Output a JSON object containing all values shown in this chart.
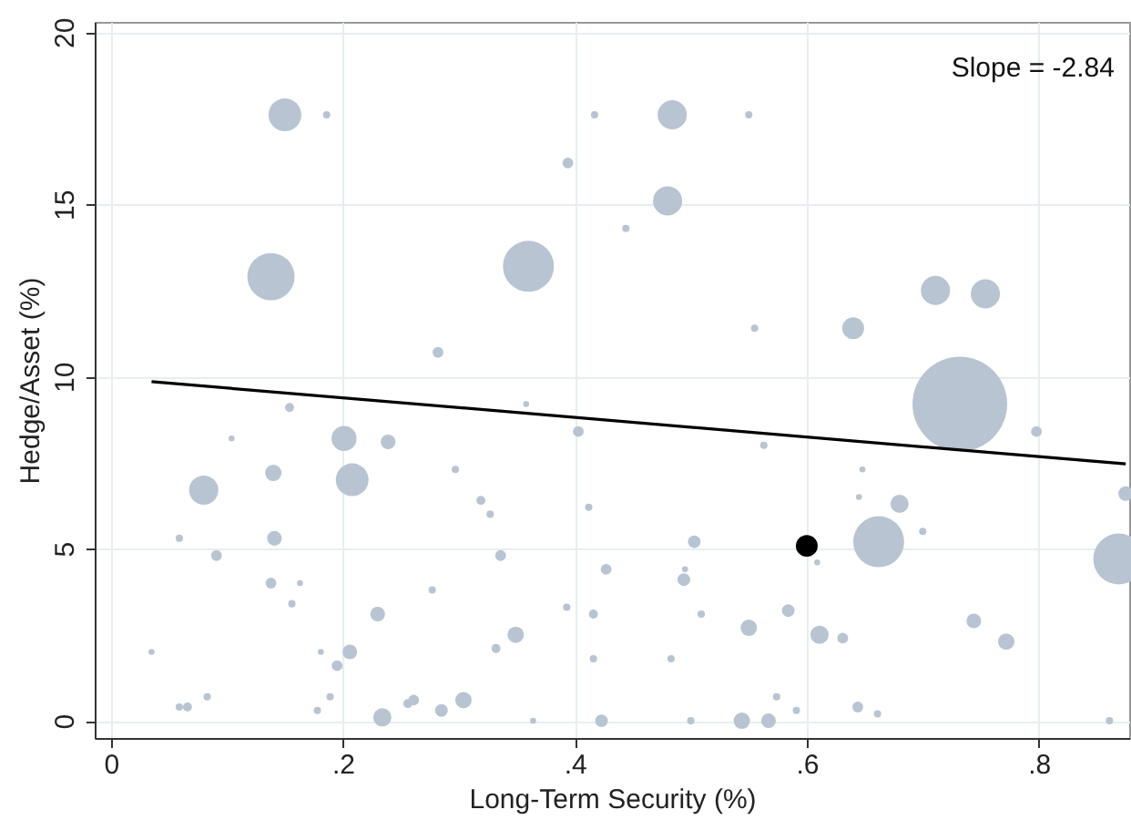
{
  "chart_data": {
    "type": "bubble",
    "xlabel": "Long-Term Security (%)",
    "ylabel": "Hedge/Asset (%)",
    "xlim": [
      -0.014,
      0.878
    ],
    "ylim": [
      -0.5,
      20.3
    ],
    "xticks": [
      0,
      {
        "value": 0.2,
        "label": ".2"
      },
      {
        "value": 0.4,
        "label": ".4"
      },
      {
        "value": 0.6,
        "label": ".6"
      },
      {
        "value": 0.8,
        "label": ".8"
      }
    ],
    "yticks": [
      0,
      5,
      10,
      15,
      20
    ],
    "grid": true,
    "annotations": [
      "Slope = -2.84"
    ],
    "series": [
      {
        "color": "#b8c4d2",
        "marker": "circle",
        "x": [
          0.15,
          0.186,
          0.417,
          0.484,
          0.55,
          0.394,
          0.138,
          0.36,
          0.48,
          0.444,
          0.711,
          0.754,
          0.64,
          0.555,
          0.732,
          0.798,
          0.282,
          0.154,
          0.104,
          0.201,
          0.239,
          0.08,
          0.14,
          0.208,
          0.297,
          0.319,
          0.327,
          0.059,
          0.141,
          0.091,
          0.336,
          0.403,
          0.412,
          0.358,
          0.138,
          0.163,
          0.156,
          0.427,
          0.277,
          0.23,
          0.393,
          0.416,
          0.035,
          0.181,
          0.206,
          0.195,
          0.349,
          0.332,
          0.416,
          0.083,
          0.059,
          0.066,
          0.189,
          0.178,
          0.261,
          0.256,
          0.304,
          0.285,
          0.234,
          0.364,
          0.423,
          0.563,
          0.648,
          0.645,
          0.68,
          0.7,
          0.662,
          0.875,
          0.869,
          0.609,
          0.503,
          0.495,
          0.494,
          0.509,
          0.584,
          0.55,
          0.611,
          0.631,
          0.744,
          0.772,
          0.483,
          0.574,
          0.591,
          0.644,
          0.661,
          0.5,
          0.544,
          0.567,
          0.861
        ],
        "values": [
          17.6,
          17.6,
          17.6,
          17.6,
          17.6,
          16.2,
          12.9,
          13.2,
          15.1,
          14.3,
          12.5,
          12.4,
          11.4,
          11.4,
          9.2,
          8.4,
          10.7,
          9.1,
          8.2,
          8.2,
          8.1,
          6.7,
          7.2,
          7.0,
          7.3,
          6.4,
          6.0,
          5.3,
          5.3,
          4.8,
          4.8,
          8.4,
          6.2,
          9.2,
          4.0,
          4.0,
          3.4,
          4.4,
          3.8,
          3.1,
          3.3,
          3.1,
          2.0,
          2.0,
          2.0,
          1.6,
          2.5,
          2.1,
          1.8,
          0.7,
          0.4,
          0.4,
          0.7,
          0.3,
          0.6,
          0.5,
          0.6,
          0.3,
          0.1,
          0.0,
          0.0,
          8.0,
          7.3,
          6.5,
          6.3,
          5.5,
          5.2,
          6.6,
          4.7,
          4.6,
          5.2,
          4.4,
          4.1,
          3.1,
          3.2,
          2.7,
          2.5,
          2.4,
          2.9,
          2.3,
          1.8,
          0.7,
          0.3,
          0.4,
          0.2,
          0.0,
          0.0,
          0.0,
          0.0
        ],
        "sizes": [
          0.12,
          0.006,
          0.006,
          0.095,
          0.006,
          0.013,
          0.25,
          0.29,
          0.095,
          0.006,
          0.095,
          0.095,
          0.053,
          0.006,
          1,
          0.013,
          0.013,
          0.009,
          0.004,
          0.07,
          0.024,
          0.095,
          0.03,
          0.12,
          0.006,
          0.009,
          0.006,
          0.006,
          0.024,
          0.013,
          0.013,
          0.013,
          0.006,
          0.004,
          0.013,
          0.004,
          0.006,
          0.013,
          0.006,
          0.024,
          0.006,
          0.009,
          0.004,
          0.004,
          0.024,
          0.013,
          0.03,
          0.009,
          0.006,
          0.006,
          0.006,
          0.009,
          0.006,
          0.006,
          0.013,
          0.009,
          0.03,
          0.018,
          0.037,
          0.004,
          0.018,
          0.006,
          0.004,
          0.004,
          0.037,
          0.006,
          0.29,
          0.024,
          0.29,
          0.004,
          0.018,
          0.004,
          0.018,
          0.006,
          0.018,
          0.03,
          0.037,
          0.013,
          0.024,
          0.03,
          0.006,
          0.006,
          0.006,
          0.013,
          0.006,
          0.006,
          0.03,
          0.024,
          0.006
        ]
      },
      {
        "color": "#000000",
        "marker": "circle",
        "x": [
          0.6
        ],
        "values": [
          5.08
        ],
        "sizes": [
          0.053
        ]
      },
      {
        "type": "line",
        "color": "#000000",
        "x": [
          0.035,
          0.875
        ],
        "values": [
          9.85,
          7.46
        ]
      }
    ]
  }
}
